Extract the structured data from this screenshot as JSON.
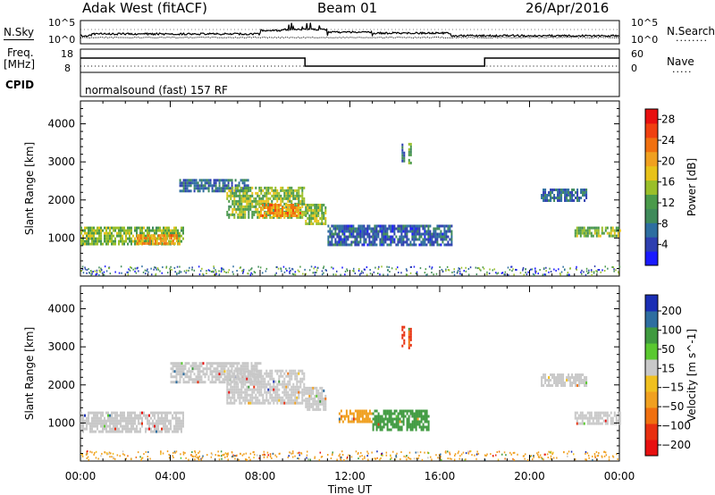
{
  "header": {
    "site": "Adak West (fitACF)",
    "beam": "Beam 01",
    "date": "26/Apr/2016"
  },
  "nsky": {
    "left_label": "N.Sky",
    "left_ticks": [
      "10^5",
      "10^0"
    ],
    "right_label": "N.Search",
    "right_ticks": [
      "10^5",
      "10^0"
    ]
  },
  "freq": {
    "left_label": "Freq.",
    "left_unit": "[MHz]",
    "left_ticks": [
      "18",
      "8"
    ],
    "right_label": "Nave",
    "right_ticks": [
      "60",
      "0"
    ]
  },
  "cpid": {
    "label": "CPID",
    "text": "normalsound (fast) 157 RF"
  },
  "colors": {
    "power_scale": [
      "#1a1aff",
      "#2e3fb0",
      "#2e6ea0",
      "#3f8a5a",
      "#4a9a4a",
      "#9abf2a",
      "#e8c21a",
      "#f0a020",
      "#f07010",
      "#f04010",
      "#e81010"
    ],
    "velocity_scale": [
      "#1a2eb4",
      "#2e6ea0",
      "#3f9a3f",
      "#5ac830",
      "#c8c8c8",
      "#f0c020",
      "#f0a020",
      "#f07010",
      "#e83010",
      "#e81010"
    ]
  },
  "chart_data": [
    {
      "type": "heatmap",
      "name": "power",
      "ylabel": "Slant Range [km]",
      "xlabel": "",
      "yticks": [
        1000,
        2000,
        3000,
        4000
      ],
      "ylim": [
        0,
        4600
      ],
      "xticks": [
        "00:00",
        "04:00",
        "08:00",
        "12:00",
        "16:00",
        "20:00",
        "00:00"
      ],
      "xlim_hours": [
        0,
        24
      ],
      "colorbar": {
        "label": "Power [dB]",
        "ticks": [
          4,
          8,
          12,
          16,
          20,
          24,
          28
        ],
        "range": [
          0,
          30
        ]
      },
      "regions": [
        {
          "t": [
            0.0,
            4.6
          ],
          "r": [
            860,
            1300
          ],
          "level": 14
        },
        {
          "t": [
            2.5,
            4.4
          ],
          "r": [
            850,
            1100
          ],
          "level": 22
        },
        {
          "t": [
            4.4,
            7.5
          ],
          "r": [
            2250,
            2550
          ],
          "level": 6
        },
        {
          "t": [
            6.5,
            10.0
          ],
          "r": [
            1550,
            2350
          ],
          "level": 14
        },
        {
          "t": [
            8.0,
            9.8
          ],
          "r": [
            1550,
            1900
          ],
          "level": 22
        },
        {
          "t": [
            10.0,
            10.9
          ],
          "r": [
            1400,
            1900
          ],
          "level": 14
        },
        {
          "t": [
            11.0,
            16.5
          ],
          "r": [
            850,
            1350
          ],
          "level": 5
        },
        {
          "t": [
            20.5,
            22.5
          ],
          "r": [
            2000,
            2300
          ],
          "level": 6
        },
        {
          "t": [
            22.0,
            24.0
          ],
          "r": [
            1050,
            1300
          ],
          "level": 14
        },
        {
          "t": [
            14.3,
            14.4
          ],
          "r": [
            3050,
            3550
          ],
          "level": 6
        },
        {
          "t": [
            14.6,
            14.7
          ],
          "r": [
            3000,
            3500
          ],
          "level": 12
        }
      ]
    },
    {
      "type": "heatmap",
      "name": "velocity",
      "ylabel": "Slant Range [km]",
      "xlabel": "Time UT",
      "yticks": [
        1000,
        2000,
        3000,
        4000
      ],
      "ylim": [
        0,
        4600
      ],
      "xticks": [
        "00:00",
        "04:00",
        "08:00",
        "12:00",
        "16:00",
        "20:00",
        "00:00"
      ],
      "xlim_hours": [
        0,
        24
      ],
      "colorbar": {
        "label": "Velocity [m s^-1]",
        "ticks": [
          200,
          100,
          50,
          15,
          -15,
          -50,
          -100,
          -200
        ],
        "range": [
          -250,
          250
        ]
      },
      "regions": [
        {
          "t": [
            0.0,
            4.6
          ],
          "r": [
            760,
            1300
          ],
          "velocity": 0
        },
        {
          "t": [
            4.0,
            8.0
          ],
          "r": [
            2050,
            2600
          ],
          "velocity": 0
        },
        {
          "t": [
            6.5,
            10.0
          ],
          "r": [
            1500,
            2400
          ],
          "velocity": 0
        },
        {
          "t": [
            10.0,
            10.9
          ],
          "r": [
            1350,
            1950
          ],
          "velocity": 0
        },
        {
          "t": [
            11.5,
            13.0
          ],
          "r": [
            1050,
            1350
          ],
          "velocity": -60
        },
        {
          "t": [
            13.0,
            15.5
          ],
          "r": [
            850,
            1350
          ],
          "velocity": 40
        },
        {
          "t": [
            20.5,
            22.5
          ],
          "r": [
            2000,
            2300
          ],
          "velocity": 0
        },
        {
          "t": [
            22.0,
            24.0
          ],
          "r": [
            1000,
            1300
          ],
          "velocity": 0
        },
        {
          "t": [
            14.3,
            14.4
          ],
          "r": [
            3050,
            3550
          ],
          "velocity": -200
        },
        {
          "t": [
            14.6,
            14.7
          ],
          "r": [
            3000,
            3500
          ],
          "velocity": -150
        }
      ]
    }
  ]
}
